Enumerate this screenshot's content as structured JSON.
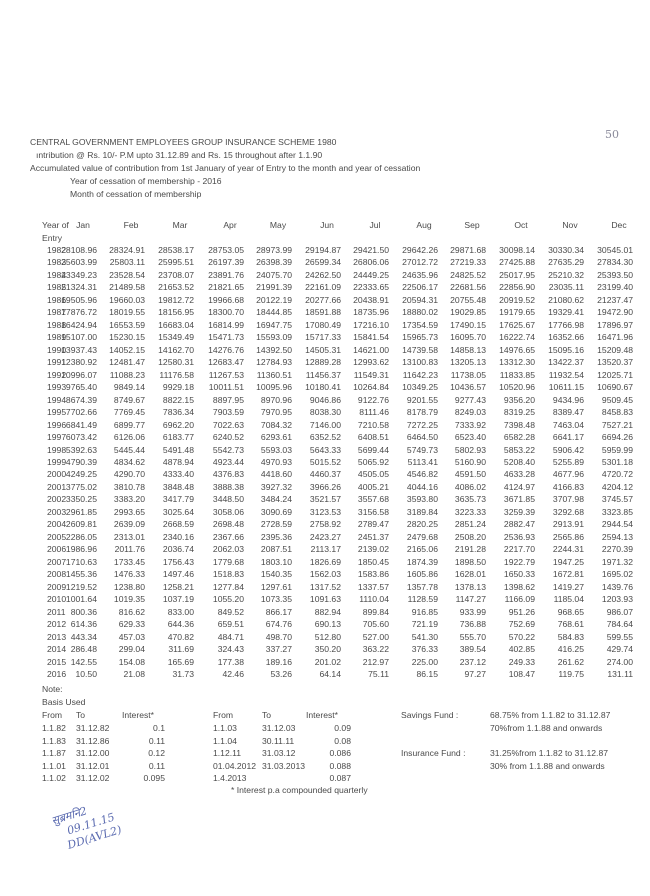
{
  "page_number": "50",
  "header": {
    "title": "CENTRAL GOVERNMENT EMPLOYEES GROUP INSURANCE SCHEME 1980",
    "line2": "ıntribution @ Rs. 10/- P.M upto 31.12.89 and Rs. 15 throughout after 1.1.90",
    "line3": "Accumulated value of contribution from 1st January of year of Entry to the month and year of cessation",
    "line4": "Year of cessation of membership - 2016",
    "line5": "Month of cessation of membership"
  },
  "table": {
    "year_header": "Year of",
    "year_header2": "Entry",
    "months": [
      "Jan",
      "Feb",
      "Mar",
      "Apr",
      "May",
      "Jun",
      "Jul",
      "Aug",
      "Sep",
      "Oct",
      "Nov",
      "Dec"
    ],
    "rows": [
      {
        "year": "1982",
        "values": [
          "28108.96",
          "28324.91",
          "28538.17",
          "28753.05",
          "28973.99",
          "29194.87",
          "29421.50",
          "29642.26",
          "29871.68",
          "30098.14",
          "30330.34",
          "30545.01"
        ]
      },
      {
        "year": "1983",
        "values": [
          "25603.99",
          "25803.11",
          "25995.51",
          "26197.39",
          "26398.39",
          "26599.34",
          "26806.06",
          "27012.72",
          "27219.33",
          "27425.88",
          "27635.29",
          "27834.30"
        ]
      },
      {
        "year": "1984",
        "values": [
          "23349.23",
          "23528.54",
          "23708.07",
          "23891.76",
          "24075.70",
          "24262.50",
          "24449.25",
          "24635.96",
          "24825.52",
          "25017.95",
          "25210.32",
          "25393.50"
        ]
      },
      {
        "year": "1985",
        "values": [
          "21324.31",
          "21489.58",
          "21653.52",
          "21821.65",
          "21991.39",
          "22161.09",
          "22333.65",
          "22506.17",
          "22681.56",
          "22856.90",
          "23035.11",
          "23199.40"
        ]
      },
      {
        "year": "1986",
        "values": [
          "19505.96",
          "19660.03",
          "19812.72",
          "19966.68",
          "20122.19",
          "20277.66",
          "20438.91",
          "20594.31",
          "20755.48",
          "20919.52",
          "21080.62",
          "21237.47"
        ]
      },
      {
        "year": "1987",
        "values": [
          "17876.72",
          "18019.55",
          "18156.95",
          "18300.70",
          "18444.85",
          "18591.88",
          "18735.96",
          "18880.02",
          "19029.85",
          "19179.65",
          "19329.41",
          "19472.90"
        ]
      },
      {
        "year": "1988",
        "values": [
          "16424.94",
          "16553.59",
          "16683.04",
          "16814.99",
          "16947.75",
          "17080.49",
          "17216.10",
          "17354.59",
          "17490.15",
          "17625.67",
          "17766.98",
          "17896.97"
        ]
      },
      {
        "year": "1989",
        "values": [
          "15107.00",
          "15230.15",
          "15349.49",
          "15471.73",
          "15593.09",
          "15717.33",
          "15841.54",
          "15965.73",
          "16095.70",
          "16222.74",
          "16352.66",
          "16471.96"
        ]
      },
      {
        "year": "1990",
        "values": [
          "13937.43",
          "14052.15",
          "14162.70",
          "14276.76",
          "14392.50",
          "14505.31",
          "14621.00",
          "14739.58",
          "14858.13",
          "14976.65",
          "15095.16",
          "15209.48"
        ]
      },
      {
        "year": "1991",
        "values": [
          "12380.92",
          "12481.47",
          "12580.31",
          "12683.47",
          "12784.93",
          "12889.28",
          "12993.62",
          "13100.83",
          "13205.13",
          "13312.30",
          "13422.37",
          "13520.37"
        ]
      },
      {
        "year": "1992",
        "values": [
          "10996.07",
          "11088.23",
          "11176.58",
          "11267.53",
          "11360.51",
          "11456.37",
          "11549.31",
          "11642.23",
          "11738.05",
          "11833.85",
          "11932.54",
          "12025.71"
        ]
      },
      {
        "year": "1993",
        "values": [
          "9765.40",
          "9849.14",
          "9929.18",
          "10011.51",
          "10095.96",
          "10180.41",
          "10264.84",
          "10349.25",
          "10436.57",
          "10520.96",
          "10611.15",
          "10690.67"
        ]
      },
      {
        "year": "1994",
        "values": [
          "8674.39",
          "8749.67",
          "8822.15",
          "8897.95",
          "8970.96",
          "9046.86",
          "9122.76",
          "9201.55",
          "9277.43",
          "9356.20",
          "9434.96",
          "9509.45"
        ]
      },
      {
        "year": "1995",
        "values": [
          "7702.66",
          "7769.45",
          "7836.34",
          "7903.59",
          "7970.95",
          "8038.30",
          "8111.46",
          "8178.79",
          "8249.03",
          "8319.25",
          "8389.47",
          "8458.83"
        ]
      },
      {
        "year": "1996",
        "values": [
          "6841.49",
          "6899.77",
          "6962.20",
          "7022.63",
          "7084.32",
          "7146.00",
          "7210.58",
          "7272.25",
          "7333.92",
          "7398.48",
          "7463.04",
          "7527.21"
        ]
      },
      {
        "year": "1997",
        "values": [
          "6073.42",
          "6126.06",
          "6183.77",
          "6240.52",
          "6293.61",
          "6352.52",
          "6408.51",
          "6464.50",
          "6523.40",
          "6582.28",
          "6641.17",
          "6694.26"
        ]
      },
      {
        "year": "1998",
        "values": [
          "5392.63",
          "5445.44",
          "5491.48",
          "5542.73",
          "5593.03",
          "5643.33",
          "5699.44",
          "5749.73",
          "5802.93",
          "5853.22",
          "5906.42",
          "5959.99"
        ]
      },
      {
        "year": "1999",
        "values": [
          "4790.39",
          "4834.62",
          "4878.94",
          "4923.44",
          "4970.93",
          "5015.52",
          "5065.92",
          "5113.41",
          "5160.90",
          "5208.40",
          "5255.89",
          "5301.18"
        ]
      },
      {
        "year": "2000",
        "values": [
          "4249.25",
          "4290.70",
          "4333.40",
          "4376.83",
          "4418.60",
          "4460.37",
          "4505.05",
          "4546.82",
          "4591.50",
          "4633.28",
          "4677.96",
          "4720.72"
        ]
      },
      {
        "year": "2001",
        "values": [
          "3775.02",
          "3810.78",
          "3848.48",
          "3888.38",
          "3927.32",
          "3966.26",
          "4005.21",
          "4044.16",
          "4086.02",
          "4124.97",
          "4166.83",
          "4204.12"
        ]
      },
      {
        "year": "2002",
        "values": [
          "3350.25",
          "3383.20",
          "3417.79",
          "3448.50",
          "3484.24",
          "3521.57",
          "3557.68",
          "3593.80",
          "3635.73",
          "3671.85",
          "3707.98",
          "3745.57"
        ]
      },
      {
        "year": "2003",
        "values": [
          "2961.85",
          "2993.65",
          "3025.64",
          "3058.06",
          "3090.69",
          "3123.53",
          "3156.58",
          "3189.84",
          "3223.33",
          "3259.39",
          "3292.68",
          "3323.85"
        ]
      },
      {
        "year": "2004",
        "values": [
          "2609.81",
          "2639.09",
          "2668.59",
          "2698.48",
          "2728.59",
          "2758.92",
          "2789.47",
          "2820.25",
          "2851.24",
          "2882.47",
          "2913.91",
          "2944.54"
        ]
      },
      {
        "year": "2005",
        "values": [
          "2286.05",
          "2313.01",
          "2340.16",
          "2367.66",
          "2395.36",
          "2423.27",
          "2451.37",
          "2479.68",
          "2508.20",
          "2536.93",
          "2565.86",
          "2594.13"
        ]
      },
      {
        "year": "2006",
        "values": [
          "1986.96",
          "2011.76",
          "2036.74",
          "2062.03",
          "2087.51",
          "2113.17",
          "2139.02",
          "2165.06",
          "2191.28",
          "2217.70",
          "2244.31",
          "2270.39"
        ]
      },
      {
        "year": "2007",
        "values": [
          "1710.63",
          "1733.45",
          "1756.43",
          "1779.68",
          "1803.10",
          "1826.69",
          "1850.45",
          "1874.39",
          "1898.50",
          "1922.79",
          "1947.25",
          "1971.32"
        ]
      },
      {
        "year": "2008",
        "values": [
          "1455.36",
          "1476.33",
          "1497.46",
          "1518.83",
          "1540.35",
          "1562.03",
          "1583.86",
          "1605.86",
          "1628.01",
          "1650.33",
          "1672.81",
          "1695.02"
        ]
      },
      {
        "year": "2009",
        "values": [
          "1219.52",
          "1238.80",
          "1258.21",
          "1277.84",
          "1297.61",
          "1317.52",
          "1337.57",
          "1357.78",
          "1378.13",
          "1398.62",
          "1419.27",
          "1439.76"
        ]
      },
      {
        "year": "2010",
        "values": [
          "1001.64",
          "1019.35",
          "1037.19",
          "1055.20",
          "1073.35",
          "1091.63",
          "1110.04",
          "1128.59",
          "1147.27",
          "1166.09",
          "1185.04",
          "1203.93"
        ]
      },
      {
        "year": "2011",
        "values": [
          "800.36",
          "816.62",
          "833.00",
          "849.52",
          "866.17",
          "882.94",
          "899.84",
          "916.85",
          "933.99",
          "951.26",
          "968.65",
          "986.07"
        ]
      },
      {
        "year": "2012",
        "values": [
          "614.36",
          "629.33",
          "644.36",
          "659.51",
          "674.76",
          "690.13",
          "705.60",
          "721.19",
          "736.88",
          "752.69",
          "768.61",
          "784.64"
        ]
      },
      {
        "year": "2013",
        "values": [
          "443.34",
          "457.03",
          "470.82",
          "484.71",
          "498.70",
          "512.80",
          "527.00",
          "541.30",
          "555.70",
          "570.22",
          "584.83",
          "599.55"
        ]
      },
      {
        "year": "2014",
        "values": [
          "286.48",
          "299.04",
          "311.69",
          "324.43",
          "337.27",
          "350.20",
          "363.22",
          "376.33",
          "389.54",
          "402.85",
          "416.25",
          "429.74"
        ]
      },
      {
        "year": "2015",
        "values": [
          "142.55",
          "154.08",
          "165.69",
          "177.38",
          "189.16",
          "201.02",
          "212.97",
          "225.00",
          "237.12",
          "249.33",
          "261.62",
          "274.00"
        ]
      },
      {
        "year": "2016",
        "values": [
          "10.50",
          "21.08",
          "31.73",
          "42.46",
          "53.26",
          "64.14",
          "75.11",
          "86.15",
          "97.27",
          "108.47",
          "119.75",
          "131.11"
        ]
      }
    ]
  },
  "notes": {
    "note_label": "Note:",
    "basis_label": "Basis Used",
    "col_from": "From",
    "col_to": "To",
    "col_interest": "Interest*",
    "left_rates": [
      {
        "from": "1.1.82",
        "to": "31.12.82",
        "interest": "0.1"
      },
      {
        "from": "1.1.83",
        "to": "31.12.86",
        "interest": "0.11"
      },
      {
        "from": "1.1.87",
        "to": "31.12.00",
        "interest": "0.12"
      },
      {
        "from": "1.1.01",
        "to": "31.12.01",
        "interest": "0.11"
      },
      {
        "from": "1.1.02",
        "to": "31.12.02",
        "interest": "0.095"
      }
    ],
    "right_rates": [
      {
        "from": "1.1.03",
        "to": "31.12.03",
        "interest": "0.09"
      },
      {
        "from": "1.1.04",
        "to": "30.11.11",
        "interest": "0.08"
      },
      {
        "from": "1.12.11",
        "to": "31.03.12",
        "interest": "0.086"
      },
      {
        "from": "01.04.2012",
        "to": "31.03.2013",
        "interest": "0.088"
      },
      {
        "from": "1.4.2013",
        "to": "",
        "interest": "0.087"
      }
    ],
    "footnote": "* Interest p.a compounded quarterly",
    "savings_label": "Savings Fund :",
    "savings_line1": "68.75% from 1.1.82 to 31.12.87",
    "savings_line2": "70%from 1.1.88 and onwards",
    "insurance_label": "Insurance Fund :",
    "insurance_line1": "31.25%from 1.1.82 to 31.12.87",
    "insurance_line2": "30% from 1.1.88 and onwards"
  },
  "handwritten": {
    "line1": "सुब्रमनि2",
    "line2": "09.11.15",
    "line3": "DD(AVL2)"
  }
}
